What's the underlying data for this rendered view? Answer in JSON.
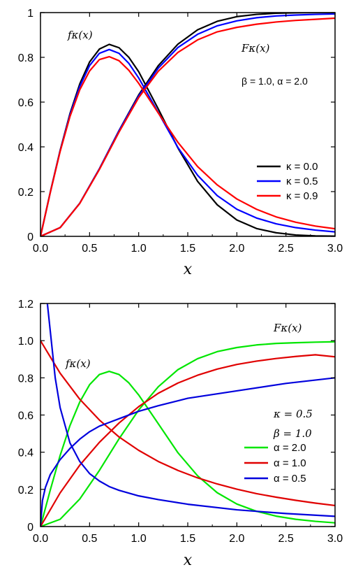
{
  "chart_data": [
    {
      "type": "line",
      "xlabel": "x",
      "xlim": [
        0,
        3
      ],
      "ylim": [
        0,
        1
      ],
      "xticks": [
        "0.0",
        "0.5",
        "1.0",
        "1.5",
        "2.0",
        "2.5",
        "3.0"
      ],
      "yticks": [
        "0",
        "0.2",
        "0.4",
        "0.6",
        "0.8",
        "1"
      ],
      "annotations": {
        "pdf_label": "fκ(x)",
        "cdf_label": "Fκ(x)",
        "params": "β = 1.0, α = 2.0"
      },
      "legend_position": "bottom-right",
      "legend": [
        {
          "label": "κ = 0.0",
          "color": "#000000"
        },
        {
          "label": "κ = 0.5",
          "color": "#0000ff"
        },
        {
          "label": "κ = 0.9",
          "color": "#ff0000"
        }
      ],
      "series": [
        {
          "name": "κ = 0.0 (pdf)",
          "color": "#000000",
          "x": [
            0,
            0.1,
            0.2,
            0.3,
            0.4,
            0.5,
            0.6,
            0.7,
            0.8,
            0.9,
            1.0,
            1.2,
            1.4,
            1.6,
            1.8,
            2.0,
            2.2,
            2.4,
            2.6,
            2.8,
            3.0
          ],
          "y": [
            0,
            0.198,
            0.384,
            0.548,
            0.681,
            0.779,
            0.837,
            0.858,
            0.843,
            0.8,
            0.736,
            0.569,
            0.395,
            0.246,
            0.141,
            0.073,
            0.035,
            0.016,
            0.006,
            0.002,
            0.001
          ]
        },
        {
          "name": "κ = 0.0 (cdf)",
          "color": "#000000",
          "x": [
            0,
            0.2,
            0.4,
            0.6,
            0.8,
            1.0,
            1.2,
            1.4,
            1.6,
            1.8,
            2.0,
            2.2,
            2.4,
            2.6,
            2.8,
            3.0
          ],
          "y": [
            0,
            0.039,
            0.148,
            0.302,
            0.473,
            0.632,
            0.763,
            0.859,
            0.923,
            0.961,
            0.982,
            0.992,
            0.997,
            0.999,
            1.0,
            1.0
          ]
        },
        {
          "name": "κ = 0.5 (pdf)",
          "color": "#0000ff",
          "x": [
            0,
            0.1,
            0.2,
            0.3,
            0.4,
            0.5,
            0.6,
            0.7,
            0.8,
            0.9,
            1.0,
            1.2,
            1.4,
            1.6,
            1.8,
            2.0,
            2.2,
            2.4,
            2.6,
            2.8,
            3.0
          ],
          "y": [
            0,
            0.197,
            0.382,
            0.543,
            0.67,
            0.763,
            0.818,
            0.835,
            0.818,
            0.773,
            0.708,
            0.553,
            0.397,
            0.273,
            0.182,
            0.121,
            0.082,
            0.056,
            0.039,
            0.028,
            0.02
          ]
        },
        {
          "name": "κ = 0.5 (cdf)",
          "color": "#0000ff",
          "x": [
            0,
            0.2,
            0.4,
            0.6,
            0.8,
            1.0,
            1.2,
            1.4,
            1.6,
            1.8,
            2.0,
            2.2,
            2.4,
            2.6,
            2.8,
            3.0
          ],
          "y": [
            0,
            0.039,
            0.148,
            0.302,
            0.472,
            0.627,
            0.752,
            0.844,
            0.903,
            0.941,
            0.963,
            0.977,
            0.985,
            0.989,
            0.992,
            0.994
          ]
        },
        {
          "name": "κ = 0.9 (pdf)",
          "color": "#ff0000",
          "x": [
            0,
            0.1,
            0.2,
            0.3,
            0.4,
            0.5,
            0.6,
            0.7,
            0.8,
            0.9,
            1.0,
            1.2,
            1.4,
            1.6,
            1.8,
            2.0,
            2.2,
            2.4,
            2.6,
            2.8,
            3.0
          ],
          "y": [
            0,
            0.196,
            0.379,
            0.535,
            0.655,
            0.739,
            0.79,
            0.803,
            0.785,
            0.742,
            0.684,
            0.551,
            0.42,
            0.312,
            0.23,
            0.167,
            0.121,
            0.087,
            0.063,
            0.046,
            0.034
          ]
        },
        {
          "name": "κ = 0.9 (cdf)",
          "color": "#ff0000",
          "x": [
            0,
            0.2,
            0.4,
            0.6,
            0.8,
            1.0,
            1.2,
            1.4,
            1.6,
            1.8,
            2.0,
            2.2,
            2.4,
            2.6,
            2.8,
            3.0
          ],
          "y": [
            0,
            0.039,
            0.147,
            0.299,
            0.466,
            0.62,
            0.738,
            0.822,
            0.878,
            0.914,
            0.934,
            0.948,
            0.958,
            0.965,
            0.97,
            0.975
          ]
        }
      ]
    },
    {
      "type": "line",
      "xlabel": "x",
      "xlim": [
        0,
        3
      ],
      "ylim": [
        0,
        1.2
      ],
      "xticks": [
        "0.0",
        "0.5",
        "1.0",
        "1.5",
        "2.0",
        "2.5",
        "3.0"
      ],
      "yticks": [
        "0",
        "0.2",
        "0.4",
        "0.6",
        "0.8",
        "1.0",
        "1.2"
      ],
      "annotations": {
        "pdf_label": "fκ(x)",
        "cdf_label": "Fκ(x)",
        "kappa": "κ = 0.5",
        "beta": "β = 1.0"
      },
      "legend_position": "bottom-right",
      "legend": [
        {
          "label": "α = 2.0",
          "color": "#00e600"
        },
        {
          "label": "α = 1.0",
          "color": "#e00000"
        },
        {
          "label": "α = 0.5",
          "color": "#0000dd"
        }
      ],
      "series": [
        {
          "name": "α = 2.0 (pdf)",
          "color": "#00e600",
          "x": [
            0,
            0.1,
            0.2,
            0.3,
            0.4,
            0.5,
            0.6,
            0.7,
            0.8,
            0.9,
            1.0,
            1.2,
            1.4,
            1.6,
            1.8,
            2.0,
            2.2,
            2.4,
            2.6,
            2.8,
            3.0
          ],
          "y": [
            0,
            0.197,
            0.382,
            0.543,
            0.67,
            0.763,
            0.818,
            0.835,
            0.818,
            0.773,
            0.708,
            0.553,
            0.397,
            0.273,
            0.182,
            0.121,
            0.082,
            0.056,
            0.039,
            0.028,
            0.02
          ]
        },
        {
          "name": "α = 2.0 (cdf)",
          "color": "#00e600",
          "x": [
            0,
            0.2,
            0.4,
            0.6,
            0.8,
            1.0,
            1.2,
            1.4,
            1.6,
            1.8,
            2.0,
            2.2,
            2.4,
            2.6,
            2.8,
            3.0
          ],
          "y": [
            0,
            0.039,
            0.148,
            0.302,
            0.472,
            0.627,
            0.752,
            0.844,
            0.903,
            0.941,
            0.963,
            0.977,
            0.985,
            0.989,
            0.992,
            0.994
          ]
        },
        {
          "name": "α = 1.0 (pdf)",
          "color": "#e00000",
          "x": [
            0,
            0.2,
            0.4,
            0.6,
            0.8,
            1.0,
            1.2,
            1.4,
            1.6,
            1.8,
            2.0,
            2.2,
            2.4,
            2.6,
            2.8,
            3.0
          ],
          "y": [
            1.0,
            0.825,
            0.685,
            0.573,
            0.482,
            0.41,
            0.35,
            0.302,
            0.262,
            0.229,
            0.201,
            0.177,
            0.158,
            0.141,
            0.126,
            0.113
          ]
        },
        {
          "name": "α = 1.0 (cdf)",
          "color": "#e00000",
          "x": [
            0,
            0.2,
            0.4,
            0.6,
            0.8,
            1.0,
            1.2,
            1.4,
            1.6,
            1.8,
            2.0,
            2.2,
            2.4,
            2.6,
            2.8,
            3.0
          ],
          "y": [
            0,
            0.181,
            0.33,
            0.453,
            0.557,
            0.645,
            0.717,
            0.772,
            0.814,
            0.847,
            0.872,
            0.89,
            0.904,
            0.915,
            0.924,
            0.913
          ]
        },
        {
          "name": "α = 0.5 (pdf)",
          "color": "#0000dd",
          "x": [
            0.07,
            0.1,
            0.15,
            0.2,
            0.3,
            0.4,
            0.5,
            0.6,
            0.7,
            0.8,
            1.0,
            1.2,
            1.5,
            2.0,
            2.5,
            3.0
          ],
          "y": [
            1.2,
            1.05,
            0.8,
            0.64,
            0.45,
            0.35,
            0.285,
            0.245,
            0.215,
            0.195,
            0.165,
            0.145,
            0.12,
            0.09,
            0.07,
            0.055
          ]
        },
        {
          "name": "α = 0.5 (cdf)",
          "color": "#0000dd",
          "x": [
            0,
            0.02,
            0.05,
            0.1,
            0.2,
            0.3,
            0.4,
            0.5,
            0.6,
            0.7,
            0.8,
            1.0,
            1.2,
            1.5,
            2.0,
            2.5,
            3.0
          ],
          "y": [
            0,
            0.14,
            0.21,
            0.28,
            0.36,
            0.42,
            0.47,
            0.51,
            0.54,
            0.56,
            0.58,
            0.62,
            0.65,
            0.69,
            0.73,
            0.77,
            0.8
          ]
        }
      ]
    }
  ]
}
